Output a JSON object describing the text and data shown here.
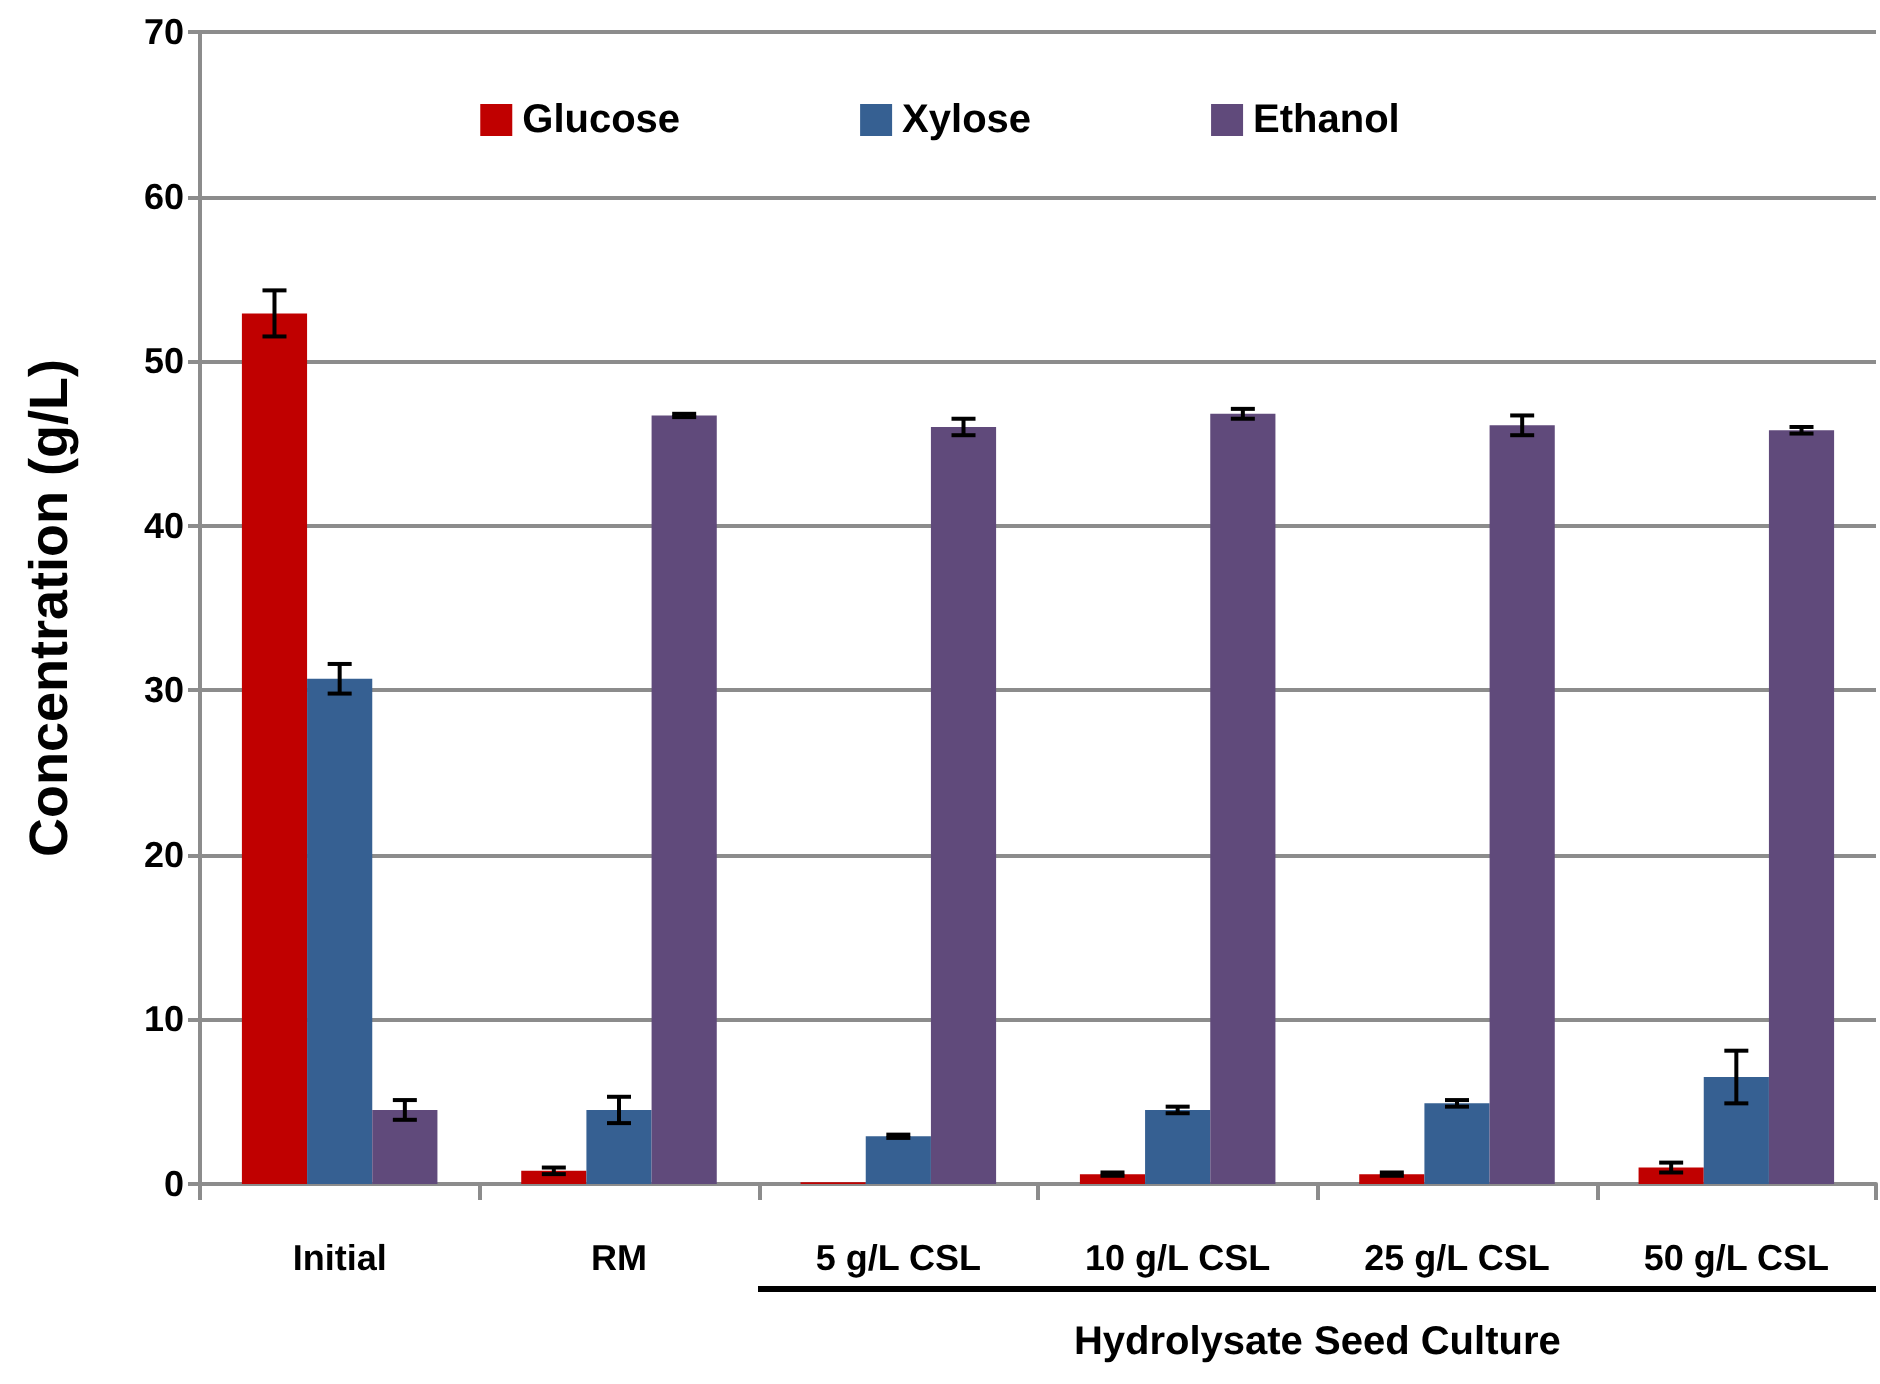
{
  "chart_data": {
    "type": "bar",
    "ylabel": "Concentration (g/L)",
    "categories": [
      "Initial",
      "RM",
      "5 g/L CSL",
      "10 g/L CSL",
      "25 g/L CSL",
      "50 g/L CSL"
    ],
    "series": [
      {
        "name": "Glucose",
        "color": "#c00000",
        "values": [
          52.9,
          0.8,
          0.1,
          0.6,
          0.6,
          1.0
        ],
        "errors": [
          1.4,
          0.2,
          null,
          0.1,
          0.1,
          0.3
        ]
      },
      {
        "name": "Xylose",
        "color": "#366092",
        "values": [
          30.7,
          4.5,
          2.9,
          4.5,
          4.9,
          6.5
        ],
        "errors": [
          0.9,
          0.8,
          0.1,
          0.2,
          0.2,
          1.6
        ]
      },
      {
        "name": "Ethanol",
        "color": "#604a7b",
        "values": [
          4.5,
          46.7,
          46.0,
          46.8,
          46.1,
          45.8
        ],
        "errors": [
          0.6,
          0.1,
          0.5,
          0.3,
          0.6,
          0.2
        ]
      }
    ],
    "ylim": [
      0,
      70
    ],
    "yticks": [
      0,
      10,
      20,
      30,
      40,
      50,
      60,
      70
    ],
    "grid": "y",
    "legend": "top",
    "annotations": [
      "Hydrolysate Seed Culture"
    ]
  }
}
